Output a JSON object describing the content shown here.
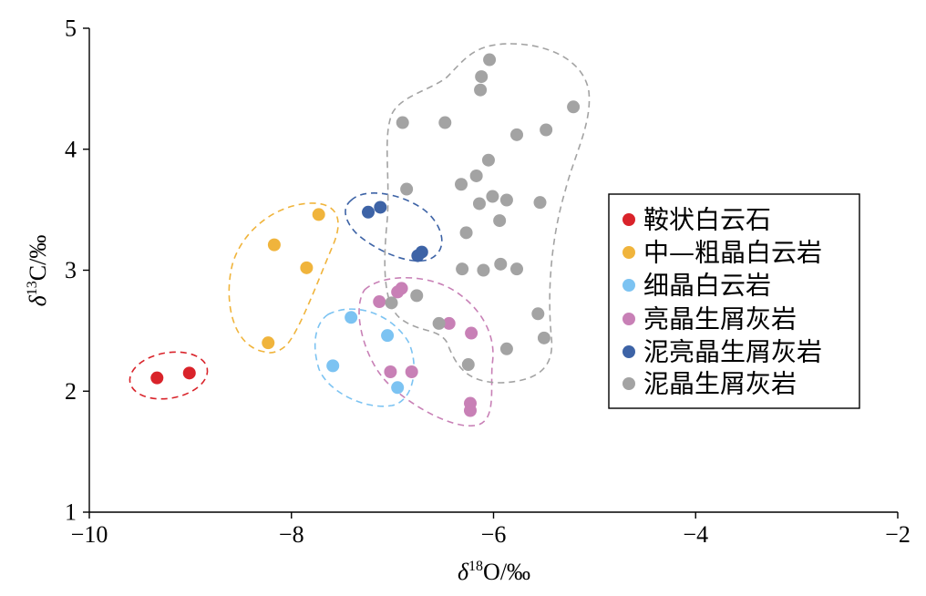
{
  "chart_data": {
    "type": "scatter",
    "title": "",
    "xlabel": {
      "symbol": "δ",
      "sup": "18",
      "rest": "O/‰"
    },
    "ylabel": {
      "symbol": "δ",
      "sup": "13",
      "rest": "C/‰"
    },
    "xlim": [
      -10,
      -2
    ],
    "ylim": [
      1,
      5
    ],
    "xticks": [
      -10,
      -8,
      -6,
      -4,
      -2
    ],
    "xtick_labels": [
      "−10",
      "−8",
      "−6",
      "−4",
      "−2"
    ],
    "yticks": [
      1,
      2,
      3,
      4,
      5
    ],
    "ytick_labels": [
      "1",
      "2",
      "3",
      "4",
      "5"
    ],
    "grid": false,
    "legend_position": "right",
    "series": [
      {
        "name": "鞍状白云石",
        "color": "#d9232a",
        "points": [
          [
            -9.33,
            2.11
          ],
          [
            -9.01,
            2.15
          ]
        ]
      },
      {
        "name": "中—粗晶白云岩",
        "color": "#f0b43c",
        "points": [
          [
            -7.73,
            3.46
          ],
          [
            -8.17,
            3.21
          ],
          [
            -7.85,
            3.02
          ],
          [
            -8.23,
            2.4
          ]
        ]
      },
      {
        "name": "细晶白云岩",
        "color": "#7cc3f2",
        "points": [
          [
            -7.41,
            2.61
          ],
          [
            -7.05,
            2.46
          ],
          [
            -7.59,
            2.21
          ],
          [
            -6.95,
            2.03
          ]
        ]
      },
      {
        "name": "亮晶生屑灰岩",
        "color": "#c880b6",
        "points": [
          [
            -6.91,
            2.85
          ],
          [
            -6.95,
            2.82
          ],
          [
            -7.13,
            2.74
          ],
          [
            -6.44,
            2.56
          ],
          [
            -6.22,
            2.48
          ],
          [
            -7.02,
            2.16
          ],
          [
            -6.81,
            2.16
          ],
          [
            -6.23,
            1.9
          ],
          [
            -6.23,
            1.84
          ]
        ]
      },
      {
        "name": "泥亮晶生屑灰岩",
        "color": "#3d63a6",
        "points": [
          [
            -7.24,
            3.48
          ],
          [
            -7.12,
            3.52
          ],
          [
            -6.71,
            3.15
          ],
          [
            -6.75,
            3.12
          ]
        ]
      },
      {
        "name": "泥晶生屑灰岩",
        "color": "#a3a3a3",
        "points": [
          [
            -6.04,
            4.74
          ],
          [
            -6.12,
            4.6
          ],
          [
            -6.13,
            4.49
          ],
          [
            -5.21,
            4.35
          ],
          [
            -6.9,
            4.22
          ],
          [
            -6.48,
            4.22
          ],
          [
            -5.48,
            4.16
          ],
          [
            -5.77,
            4.12
          ],
          [
            -6.05,
            3.91
          ],
          [
            -6.17,
            3.78
          ],
          [
            -6.32,
            3.71
          ],
          [
            -6.86,
            3.67
          ],
          [
            -6.01,
            3.61
          ],
          [
            -5.87,
            3.58
          ],
          [
            -6.14,
            3.55
          ],
          [
            -5.54,
            3.56
          ],
          [
            -5.94,
            3.41
          ],
          [
            -6.27,
            3.31
          ],
          [
            -5.93,
            3.05
          ],
          [
            -6.31,
            3.01
          ],
          [
            -6.1,
            3.0
          ],
          [
            -5.77,
            3.01
          ],
          [
            -6.76,
            2.79
          ],
          [
            -7.01,
            2.73
          ],
          [
            -5.56,
            2.64
          ],
          [
            -6.54,
            2.56
          ],
          [
            -5.5,
            2.44
          ],
          [
            -5.87,
            2.35
          ],
          [
            -6.25,
            2.22
          ]
        ]
      }
    ]
  }
}
